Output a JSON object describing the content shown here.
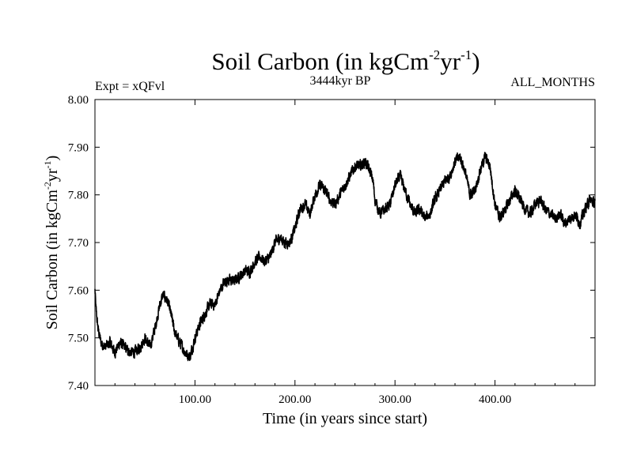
{
  "chart_data": {
    "type": "line",
    "title": "Soil Carbon (in kgCm",
    "title_sup1": "-2",
    "title_mid": "yr",
    "title_sup2": "-1",
    "title_end": ")",
    "subtitle_left": "Expt = xQFvl",
    "subtitle_center": "3444kyr BP",
    "subtitle_right": "ALL_MONTHS",
    "xlabel": "Time (in years since start)",
    "ylabel": "Soil Carbon (in kgCm",
    "ylabel_sup1": "-2",
    "ylabel_mid": "yr",
    "ylabel_sup2": "-1",
    "ylabel_end": ")",
    "xlim": [
      0,
      500
    ],
    "ylim": [
      7.4,
      8.0
    ],
    "x_ticks": [
      100,
      200,
      300,
      400
    ],
    "x_tick_labels": [
      "100.00",
      "200.00",
      "300.00",
      "400.00"
    ],
    "y_ticks": [
      7.4,
      7.5,
      7.6,
      7.7,
      7.8,
      7.9,
      8.0
    ],
    "y_tick_labels": [
      "7.40",
      "7.50",
      "7.60",
      "7.70",
      "7.80",
      "7.90",
      "8.00"
    ],
    "grid": false,
    "series": [
      {
        "name": "Soil Carbon",
        "color": "#000000",
        "x": [
          0,
          1,
          3,
          6,
          10,
          15,
          20,
          25,
          30,
          35,
          40,
          45,
          50,
          55,
          60,
          65,
          68,
          72,
          76,
          80,
          85,
          90,
          95,
          100,
          105,
          110,
          115,
          120,
          125,
          130,
          135,
          140,
          145,
          150,
          155,
          160,
          165,
          170,
          175,
          180,
          185,
          190,
          195,
          200,
          205,
          210,
          215,
          220,
          225,
          230,
          235,
          240,
          245,
          250,
          255,
          260,
          265,
          270,
          275,
          278,
          280,
          285,
          290,
          295,
          300,
          305,
          310,
          315,
          320,
          325,
          330,
          335,
          340,
          345,
          350,
          355,
          360,
          365,
          370,
          375,
          380,
          385,
          390,
          395,
          400,
          405,
          410,
          415,
          420,
          425,
          430,
          435,
          440,
          445,
          450,
          455,
          460,
          465,
          470,
          475,
          480,
          485,
          490,
          495,
          500
        ],
        "values": [
          7.6,
          7.56,
          7.52,
          7.49,
          7.48,
          7.49,
          7.47,
          7.49,
          7.48,
          7.47,
          7.47,
          7.48,
          7.5,
          7.48,
          7.52,
          7.57,
          7.59,
          7.58,
          7.55,
          7.51,
          7.49,
          7.47,
          7.46,
          7.5,
          7.53,
          7.55,
          7.57,
          7.57,
          7.6,
          7.62,
          7.62,
          7.62,
          7.63,
          7.64,
          7.64,
          7.66,
          7.67,
          7.66,
          7.67,
          7.7,
          7.71,
          7.7,
          7.7,
          7.73,
          7.77,
          7.78,
          7.76,
          7.8,
          7.82,
          7.81,
          7.79,
          7.78,
          7.8,
          7.82,
          7.84,
          7.86,
          7.86,
          7.87,
          7.85,
          7.83,
          7.79,
          7.76,
          7.77,
          7.78,
          7.82,
          7.84,
          7.81,
          7.78,
          7.76,
          7.77,
          7.75,
          7.76,
          7.79,
          7.81,
          7.83,
          7.84,
          7.87,
          7.88,
          7.85,
          7.8,
          7.81,
          7.85,
          7.88,
          7.86,
          7.78,
          7.75,
          7.77,
          7.79,
          7.81,
          7.79,
          7.77,
          7.76,
          7.78,
          7.79,
          7.77,
          7.76,
          7.75,
          7.76,
          7.74,
          7.75,
          7.76,
          7.74,
          7.77,
          7.79,
          7.78
        ],
        "noise": 0.012
      }
    ]
  }
}
